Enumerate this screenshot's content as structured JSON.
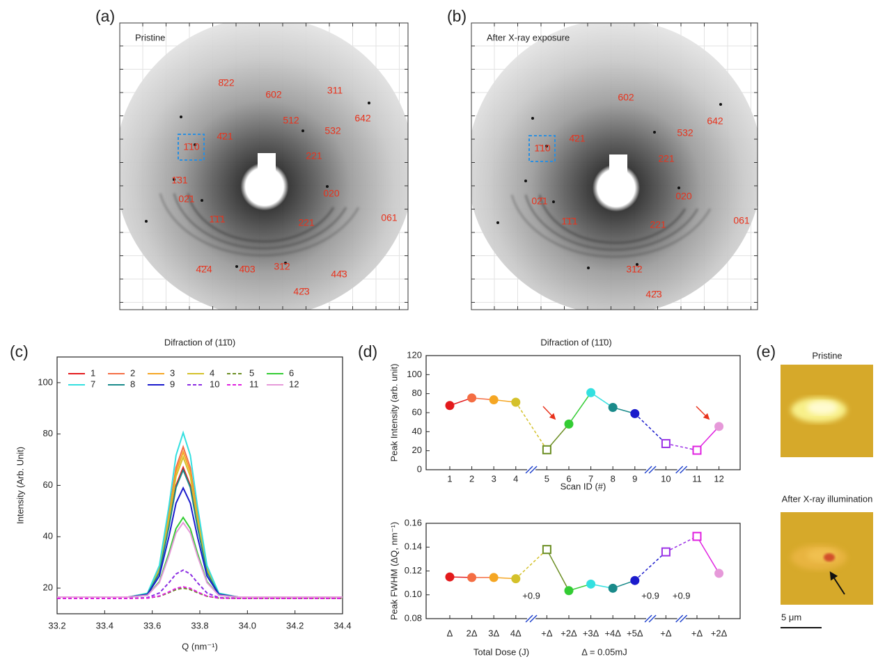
{
  "panels": {
    "a": {
      "label": "(a)",
      "title": "Pristine",
      "spots": [
        "8̄22",
        "602",
        "311",
        "512",
        "642",
        "4̄21",
        "532",
        "1̄10",
        "221",
        "1̄31",
        "02̄1",
        "020",
        "061",
        "1̄1̄1",
        "221",
        "4̄2̄4",
        "4̄03",
        "31̄2",
        "44̄3",
        "42̄3"
      ]
    },
    "b": {
      "label": "(b)",
      "title": "After X-ray exposure",
      "spots": [
        "602",
        "642",
        "532",
        "4̄21",
        "1̄10",
        "221",
        "020",
        "02̄1",
        "061",
        "1̄1̄1",
        "221",
        "31̄2",
        "42̄3"
      ]
    },
    "e": {
      "label": "(e)",
      "images": [
        "Pristine",
        "After X-ray illumination"
      ],
      "scale_bar": "5 μm"
    }
  },
  "chart_data": [
    {
      "type": "line",
      "panel_label": "(c)",
      "title": "Difraction of (11̄0)",
      "x_label": "Q (nm⁻¹)",
      "y_label": "Intensity (Arb. Unit)",
      "xlim": [
        33.2,
        34.4
      ],
      "xticks": [
        33.2,
        33.4,
        33.6,
        33.8,
        {
          "value": 34,
          "label": "34.0"
        },
        34.2,
        34.4
      ],
      "ylim": [
        10,
        110
      ],
      "yticks": [
        20,
        40,
        60,
        80,
        100
      ],
      "x": [
        33.2,
        33.5,
        33.58,
        33.63,
        33.67,
        33.7,
        33.73,
        33.76,
        33.79,
        33.83,
        33.88,
        33.96,
        34.4
      ],
      "series": [
        {
          "name": "1",
          "color": "#e31a1c",
          "dashed": false,
          "values": [
            16.5,
            16.5,
            17.7,
            26.2,
            44.4,
            60.0,
            67,
            60.0,
            44.4,
            26.2,
            17.7,
            16.5,
            16.5
          ]
        },
        {
          "name": "2",
          "color": "#f46d43",
          "dashed": false,
          "values": [
            16.5,
            16.5,
            17.9,
            27.7,
            48.8,
            66.9,
            75,
            66.9,
            48.8,
            27.7,
            17.9,
            16.5,
            16.5
          ]
        },
        {
          "name": "3",
          "color": "#f5a623",
          "dashed": false,
          "values": [
            16.5,
            16.5,
            17.9,
            27.3,
            47.7,
            65.2,
            73,
            65.2,
            47.7,
            27.3,
            17.9,
            16.5,
            16.5
          ]
        },
        {
          "name": "4",
          "color": "#d4c12a",
          "dashed": false,
          "values": [
            16.5,
            16.5,
            17.8,
            27.0,
            46.6,
            63.5,
            71,
            63.5,
            46.6,
            27.0,
            17.8,
            16.5,
            16.5
          ]
        },
        {
          "name": "5",
          "color": "#6b8e23",
          "dashed": true,
          "values": [
            16,
            16,
            16.1,
            16.8,
            18.2,
            19.4,
            20,
            19.4,
            18.2,
            16.8,
            16.1,
            16,
            16
          ]
        },
        {
          "name": "6",
          "color": "#33cc33",
          "dashed": false,
          "values": [
            16.5,
            16.5,
            17.2,
            22.5,
            33.6,
            43.2,
            47.5,
            43.2,
            33.6,
            22.5,
            17.2,
            16.5,
            16.5
          ]
        },
        {
          "name": "7",
          "color": "#33e0e0",
          "dashed": false,
          "values": [
            16.5,
            16.5,
            18.0,
            28.8,
            51.8,
            71.7,
            80.5,
            71.7,
            51.8,
            28.8,
            18.0,
            16.5,
            16.5
          ]
        },
        {
          "name": "8",
          "color": "#1a8a8a",
          "dashed": false,
          "values": [
            16.5,
            16.5,
            17.7,
            26.0,
            43.8,
            59.2,
            66,
            59.2,
            43.8,
            26.0,
            17.7,
            16.5,
            16.5
          ]
        },
        {
          "name": "9",
          "color": "#1a1acc",
          "dashed": false,
          "values": [
            16.5,
            16.5,
            17.5,
            24.7,
            40.0,
            53.1,
            59,
            53.1,
            40.0,
            24.7,
            17.5,
            16.5,
            16.5
          ]
        },
        {
          "name": "10",
          "color": "#8a2be2",
          "dashed": true,
          "values": [
            16,
            16,
            16.3,
            18.1,
            22.1,
            25.5,
            27,
            25.5,
            22.1,
            18.1,
            16.3,
            16,
            16
          ]
        },
        {
          "name": "11",
          "color": "#e020e0",
          "dashed": true,
          "values": [
            16,
            16,
            16.1,
            16.9,
            18.5,
            19.9,
            20.5,
            19.9,
            18.5,
            16.9,
            16.1,
            16,
            16
          ]
        },
        {
          "name": "12",
          "color": "#e699d9",
          "dashed": false,
          "values": [
            16.5,
            16.5,
            17.2,
            22.1,
            32.5,
            41.5,
            45.5,
            41.5,
            32.5,
            22.1,
            17.2,
            16.5,
            16.5
          ]
        }
      ]
    },
    {
      "type": "dotline",
      "panel_label": "(d)",
      "title": "Difraction of (11̄0)",
      "x_label": "Scan ID (#)",
      "y_label": "Peak Intensity (arb. unit)",
      "categories": [
        "1",
        "2",
        "3",
        "4",
        "5",
        "6",
        "7",
        "8",
        "9",
        "10",
        "11",
        "12"
      ],
      "ylim": [
        0,
        120
      ],
      "yticks": [
        0,
        20,
        40,
        60,
        80,
        100,
        120
      ],
      "values": [
        67.5,
        75.5,
        73.5,
        71,
        21,
        48,
        81,
        65.5,
        59,
        27.5,
        20.5,
        45.5
      ],
      "point_colors": [
        "#e31a1c",
        "#f46d43",
        "#f5a623",
        "#d4c12a",
        "#6b8e23",
        "#33cc33",
        "#33e0e0",
        "#1a8a8a",
        "#1a1acc",
        "#9b30e6",
        "#e020e0",
        "#e699d9"
      ],
      "marker_open": [
        false,
        false,
        false,
        false,
        true,
        false,
        false,
        false,
        false,
        true,
        true,
        false
      ]
    },
    {
      "type": "dotline",
      "x_label": "Total Dose (J)",
      "x_note": "Δ = 0.05mJ",
      "y_label": "Peak FWHM (ΔQ, nm⁻¹)",
      "categories": [
        "Δ",
        "2Δ",
        "3Δ",
        "4Δ",
        "+Δ",
        "+2Δ",
        "+3Δ",
        "+4Δ",
        "+5Δ",
        "+Δ",
        "+Δ",
        "+2Δ"
      ],
      "annotations": [
        "+0.9",
        "+0.9",
        "+0.9"
      ],
      "ylim": [
        0.08,
        0.16
      ],
      "yticks": [
        0.08,
        {
          "value": 0.1,
          "label": "0.10"
        },
        0.12,
        0.14,
        0.16
      ],
      "values": [
        0.115,
        0.1145,
        0.1145,
        0.1135,
        0.138,
        0.1035,
        0.109,
        0.1055,
        0.112,
        0.136,
        0.149,
        0.118
      ],
      "point_colors": [
        "#e31a1c",
        "#f46d43",
        "#f5a623",
        "#d4c12a",
        "#6b8e23",
        "#33cc33",
        "#33e0e0",
        "#1a8a8a",
        "#1a1acc",
        "#9b30e6",
        "#e020e0",
        "#e699d9"
      ],
      "marker_open": [
        false,
        false,
        false,
        false,
        true,
        false,
        false,
        false,
        false,
        true,
        true,
        false
      ]
    }
  ]
}
